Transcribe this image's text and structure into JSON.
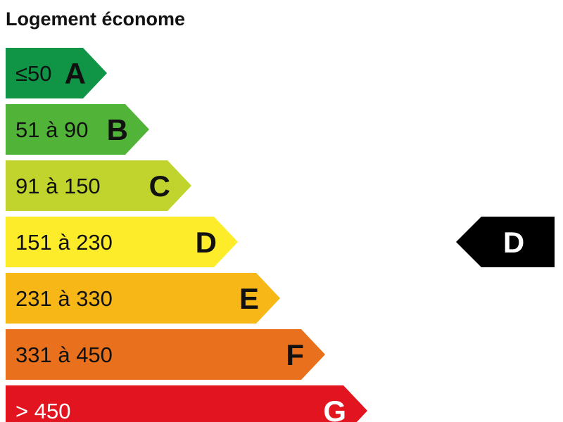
{
  "title": "Logement économe",
  "classes": [
    {
      "letter": "A",
      "range": "≤50",
      "color": "#109547",
      "text_color": "#111111"
    },
    {
      "letter": "B",
      "range": "51 à 90",
      "color": "#52b339",
      "text_color": "#111111"
    },
    {
      "letter": "C",
      "range": "91 à 150",
      "color": "#c1d42e",
      "text_color": "#111111"
    },
    {
      "letter": "D",
      "range": "151 à 230",
      "color": "#fcec2a",
      "text_color": "#111111"
    },
    {
      "letter": "E",
      "range": "231 à 330",
      "color": "#f7b817",
      "text_color": "#111111"
    },
    {
      "letter": "F",
      "range": "331 à 450",
      "color": "#e9701c",
      "text_color": "#111111"
    },
    {
      "letter": "G",
      "range": "> 450",
      "color": "#e2141f",
      "text_color": "#ffffff"
    }
  ],
  "indicator": {
    "letter": "D",
    "color": "#000000",
    "text_color": "#ffffff"
  }
}
